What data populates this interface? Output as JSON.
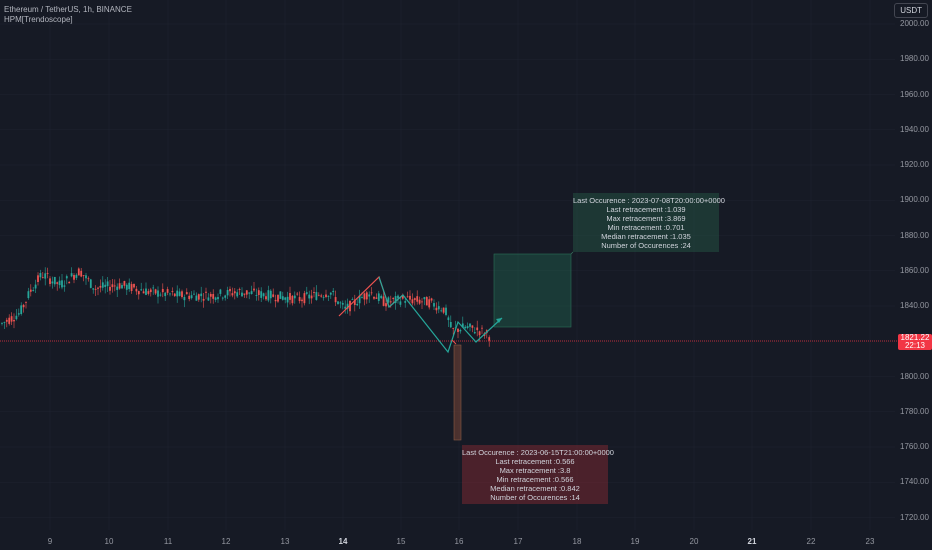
{
  "header": {
    "symbol_line": "Ethereum / TetherUS, 1h, BINANCE",
    "indicator": "HPM[Trendoscope]"
  },
  "currency_button": "USDT",
  "price_axis": {
    "labels": [
      "2000.00",
      "1980.00",
      "1960.00",
      "1940.00",
      "1920.00",
      "1900.00",
      "1880.00",
      "1860.00",
      "1840.00",
      "1800.00",
      "1780.00",
      "1760.00",
      "1740.00",
      "1720.00"
    ],
    "current_price": "1821.22",
    "countdown": "22:13"
  },
  "time_axis": {
    "labels": [
      "9",
      "10",
      "11",
      "12",
      "13",
      "14",
      "15",
      "16",
      "17",
      "18",
      "19",
      "20",
      "21",
      "22",
      "23"
    ],
    "bold": [
      "14",
      "21"
    ]
  },
  "colors": {
    "background": "#161a25",
    "up_candle": "#26a69a",
    "down_candle": "#ef5350",
    "bull_zone": "#1e5a46",
    "bear_zone": "#6e2c34",
    "price_line": "#f23645"
  },
  "bullish_stats": {
    "last_occurence": "Last Occurence : 2023-07-08T20:00:00+0000",
    "last_retracement": "Last retracement :1.039",
    "max_retracement": "Max retracement :3.869",
    "min_retracement": "Min retracement :0.701",
    "median_retracement": "Median retracement :1.035",
    "occurences": "Number of Occurences :24"
  },
  "bearish_stats": {
    "last_occurence": "Last Occurence : 2023-06-15T21:00:00+0000",
    "last_retracement": "Last retracement :0.566",
    "max_retracement": "Max retracement :3.8",
    "min_retracement": "Min retracement :0.566",
    "median_retracement": "Median retracement :0.842",
    "occurences": "Number of Occurences :14"
  }
}
